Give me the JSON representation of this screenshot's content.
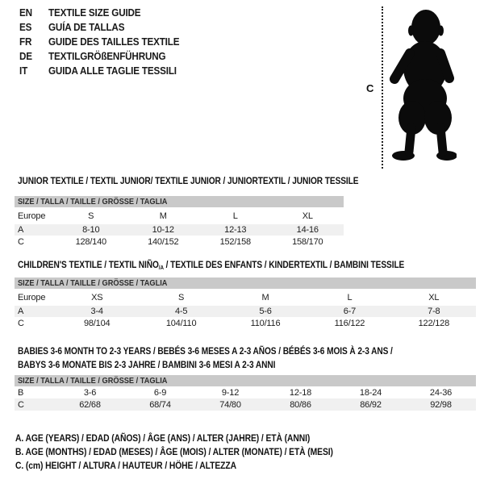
{
  "colors": {
    "background": "#ffffff",
    "size_bar_gray": "#c9c9c9",
    "alt_row_gray": "#f0f0f0",
    "text": "#1a1a1a",
    "silhouette": "#0b0b0b"
  },
  "languages": [
    {
      "code": "EN",
      "title": "TEXTILE SIZE GUIDE"
    },
    {
      "code": "ES",
      "title": "GUÍA DE TALLAS"
    },
    {
      "code": "FR",
      "title": "GUIDE DES TAILLES TEXTILE"
    },
    {
      "code": "DE",
      "title": "TEXTILGRÖßENFÜHRUNG"
    },
    {
      "code": "IT",
      "title": "GUIDA ALLE TAGLIE TESSILI"
    }
  ],
  "figure": {
    "icon": "baby-silhouette",
    "height_label": "C"
  },
  "tables": [
    {
      "title": [
        [
          {
            "text": "JUNIOR TEXTILE / TEXTIL JUNIOR/ TEXTILE JUNIOR / JUNIORTEXTIL / JUNIOR TESSILE",
            "sub": false
          }
        ]
      ],
      "size_header": "SIZE / TALLA / TAILLE / GRÖSSE / TAGLIA",
      "rows": [
        [
          "Europe",
          "S",
          "M",
          "L",
          "XL"
        ],
        [
          "A",
          "8-10",
          "10-12",
          "12-13",
          "14-16"
        ],
        [
          "C",
          "128/140",
          "140/152",
          "152/158",
          "158/170"
        ]
      ]
    },
    {
      "title": [
        [
          {
            "text": "CHILDREN'S TEXTILE / TEXTIL NIÑO",
            "sub": false
          },
          {
            "text": "/A",
            "sub": true
          },
          {
            "text": " / TEXTILE DES ENFANTS / KINDERTEXTIL / BAMBINI TESSILE",
            "sub": false
          }
        ]
      ],
      "size_header": "SIZE / TALLA / TAILLE / GRÖSSE / TAGLIA",
      "rows": [
        [
          "Europe",
          "XS",
          "S",
          "M",
          "L",
          "XL"
        ],
        [
          "A",
          "3-4",
          "4-5",
          "5-6",
          "6-7",
          "7-8"
        ],
        [
          "C",
          "98/104",
          "104/110",
          "110/116",
          "116/122",
          "122/128"
        ]
      ]
    },
    {
      "title": [
        [
          {
            "text": "BABIES 3-6 MONTH TO 2-3 YEARS / BEBÉS 3-6 MESES A 2-3 AÑOS / BÉBÉS 3-6 MOIS À 2-3 ANS /",
            "sub": false
          }
        ],
        [
          {
            "text": "BABYS 3-6 MONATE BIS 2-3 JAHRE / BAMBINI 3-6 MESI A 2-3 ANNI",
            "sub": false
          }
        ]
      ],
      "size_header": "SIZE / TALLA / TAILLE / GRÖSSE / TAGLIA",
      "rows": [
        [
          "B",
          "3-6",
          "6-9",
          "9-12",
          "12-18",
          "18-24",
          "24-36"
        ],
        [
          "C",
          "62/68",
          "68/74",
          "74/80",
          "80/86",
          "86/92",
          "92/98"
        ]
      ]
    }
  ],
  "legend": {
    "lines": [
      "A. AGE (YEARS) / EDAD (AÑOS) / ÂGE (ANS) / ALTER (JAHRE) / ETÀ (ANNI)",
      "B. AGE (MONTHS) / EDAD (MESES) / ÂGE (MOIS) / ALTER (MONATE) / ETÀ (MESI)",
      "C. (cm) HEIGHT / ALTURA / HAUTEUR / HÖHE / ALTEZZA"
    ]
  }
}
